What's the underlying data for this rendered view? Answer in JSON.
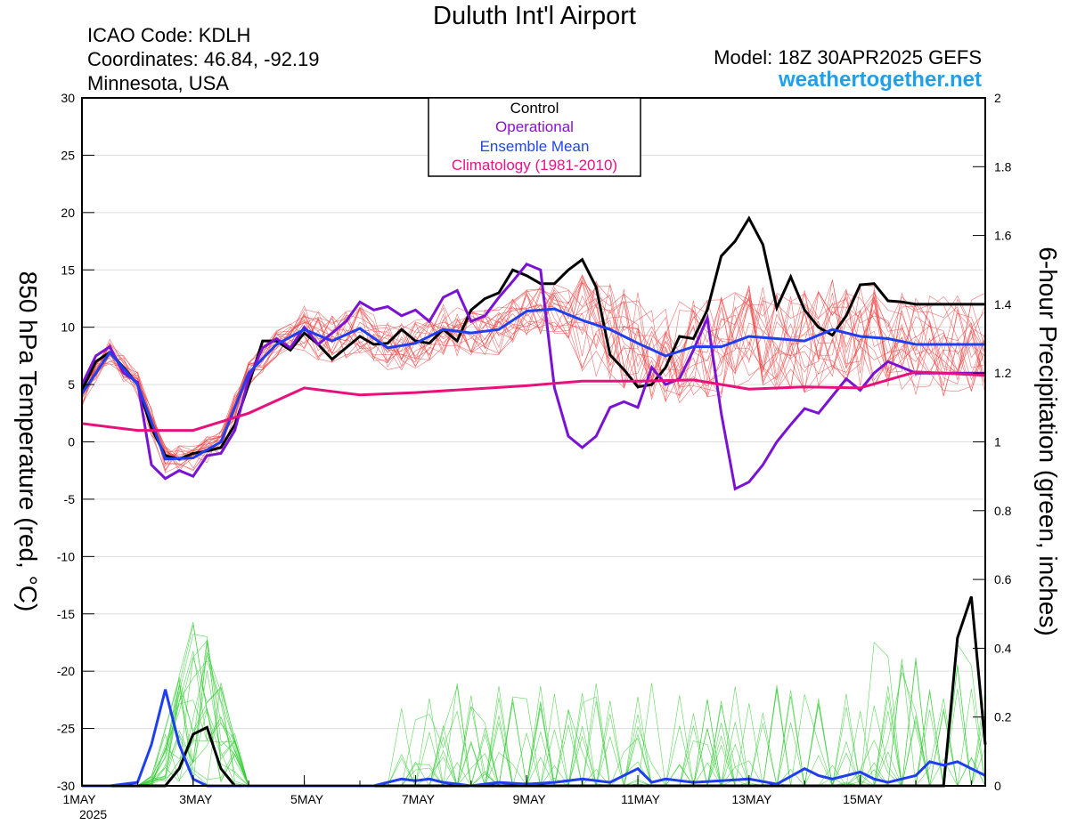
{
  "header": {
    "title": "Duluth Int'l Airport",
    "icao": "ICAO Code: KDLH",
    "coordinates": "Coordinates: 46.84, -92.19",
    "state": "Minnesota, USA",
    "model": "Model: 18Z 30APR2025 GEFS",
    "site": "weathertogether.net"
  },
  "chart_data": {
    "type": "line",
    "title": "Duluth Int'l Airport",
    "xlabel": "",
    "ylabel_left": "850 hPa Temperature (red, °C)",
    "ylabel_right": "6-hour Precipitation (green, inches)",
    "x_unit": "days since 1MAY 00Z",
    "xlim": [
      0,
      16.25
    ],
    "ylim_left": [
      -30,
      30
    ],
    "ylim_right": [
      0,
      2
    ],
    "x_ticks": [
      {
        "x": 0,
        "label": "1MAY"
      },
      {
        "x": 2,
        "label": "3MAY"
      },
      {
        "x": 4,
        "label": "5MAY"
      },
      {
        "x": 6,
        "label": "7MAY"
      },
      {
        "x": 8,
        "label": "9MAY"
      },
      {
        "x": 10,
        "label": "11MAY"
      },
      {
        "x": 12,
        "label": "13MAY"
      },
      {
        "x": 14,
        "label": "15MAY"
      }
    ],
    "x_year_label": "2025",
    "y_ticks_left": [
      30,
      25,
      20,
      15,
      10,
      5,
      0,
      -5,
      -10,
      -15,
      -20,
      -25,
      -30
    ],
    "y_ticks_right": [
      "2",
      "1.8",
      "1.6",
      "1.4",
      "1.2",
      "1",
      "0.8",
      "0.6",
      "0.4",
      "0.2",
      "0"
    ],
    "legend": {
      "position": "top-center",
      "entries": [
        {
          "label": "Control",
          "color": "#000000"
        },
        {
          "label": "Operational",
          "color": "#8a10d8"
        },
        {
          "label": "Ensemble Mean",
          "color": "#2244ee"
        },
        {
          "label": "Climatology (1981-2010)",
          "color": "#ee1188"
        }
      ]
    },
    "colors": {
      "control": "#000000",
      "operational": "#7a12d4",
      "ensemble_mean": "#1f3ef0",
      "climatology": "#e8107a",
      "members_temp": "#ee4040",
      "members_precip": "#33cc33"
    },
    "temperature_series": [
      {
        "name": "Control",
        "x": [
          0,
          0.25,
          0.5,
          0.75,
          1,
          1.25,
          1.5,
          1.75,
          2,
          2.25,
          2.5,
          2.75,
          3,
          3.25,
          3.5,
          3.75,
          4,
          4.25,
          4.5,
          4.75,
          5,
          5.25,
          5.5,
          5.75,
          6,
          6.25,
          6.5,
          6.75,
          7,
          7.25,
          7.5,
          7.75,
          8,
          8.25,
          8.5,
          8.75,
          9,
          9.25,
          9.5,
          9.75,
          10,
          10.25,
          10.5,
          10.75,
          11,
          11.25,
          11.5,
          11.75,
          12,
          12.25,
          12.5,
          12.75,
          13,
          13.25,
          13.5,
          13.75,
          14,
          14.25,
          14.5,
          14.75,
          15,
          15.25,
          15.5,
          15.75,
          16,
          16.25
        ],
        "y": [
          4.5,
          7,
          7.8,
          6.5,
          5,
          1.2,
          -1.2,
          -1.5,
          -1,
          -0.8,
          -0.5,
          1.5,
          5,
          8.8,
          8.8,
          8,
          9.5,
          8.5,
          7.2,
          8.2,
          9.2,
          8.5,
          8.6,
          9.8,
          8.8,
          8.6,
          9.8,
          8.8,
          11.5,
          12.5,
          13,
          15,
          14.5,
          13.8,
          13.8,
          15,
          15.9,
          13.5,
          7.6,
          6.3,
          4.8,
          5,
          6.5,
          9.2,
          9,
          11.5,
          16.2,
          17.5,
          19.5,
          17.2,
          11.7,
          14.4,
          11.5,
          10,
          9.3,
          11,
          13.7,
          13.8,
          12.3,
          12.2,
          12,
          12,
          12,
          12,
          12,
          12
        ]
      },
      {
        "name": "Operational",
        "x": [
          0,
          0.25,
          0.5,
          0.75,
          1,
          1.25,
          1.5,
          1.75,
          2,
          2.25,
          2.5,
          2.75,
          3,
          3.25,
          3.5,
          3.75,
          4,
          4.25,
          4.5,
          4.75,
          5,
          5.25,
          5.5,
          5.75,
          6,
          6.25,
          6.5,
          6.75,
          7,
          7.25,
          7.5,
          7.75,
          8,
          8.25,
          8.5,
          8.75,
          9,
          9.25,
          9.5,
          9.75,
          10,
          10.25,
          10.5,
          10.75,
          11,
          11.25,
          11.5,
          11.75,
          12,
          12.25,
          12.5,
          12.75,
          13,
          13.25,
          13.5,
          13.75,
          14,
          14.25,
          14.5,
          14.75,
          15,
          15.25,
          15.5,
          15.75,
          16,
          16.25
        ],
        "y": [
          5,
          7.5,
          8.3,
          6,
          5.2,
          -2,
          -3.2,
          -2.5,
          -3,
          -1.2,
          -1,
          1,
          5.5,
          8.2,
          9,
          8.2,
          10,
          8.5,
          9.5,
          10.5,
          12.2,
          11.5,
          11.8,
          11,
          11.5,
          10.5,
          12.6,
          13.2,
          10.5,
          11,
          12.6,
          14,
          15.5,
          15,
          4.7,
          0.5,
          -0.5,
          0.5,
          3,
          3.5,
          3,
          6.5,
          5,
          5.5,
          8,
          10.8,
          2.5,
          -4.1,
          -3.5,
          -2,
          0,
          1.5,
          2.9,
          2.5,
          4,
          5.5,
          4.5,
          6,
          7,
          6.5,
          6,
          6,
          6,
          6,
          6,
          6
        ]
      },
      {
        "name": "Ensemble Mean",
        "x": [
          0,
          0.5,
          1,
          1.5,
          2,
          2.5,
          3,
          3.5,
          4,
          4.5,
          5,
          5.5,
          6,
          6.5,
          7,
          7.5,
          8,
          8.5,
          9,
          9.5,
          10,
          10.5,
          11,
          11.5,
          12,
          12.5,
          13,
          13.5,
          14,
          14.5,
          15,
          15.5,
          16,
          16.25
        ],
        "y": [
          4.2,
          7.8,
          5,
          -1.5,
          -1.4,
          0,
          6,
          8.5,
          9.8,
          8.8,
          9.9,
          8.2,
          8.6,
          9.8,
          9.5,
          9.8,
          11.4,
          11.6,
          10.6,
          9.8,
          8.6,
          7.5,
          8.3,
          8.3,
          9.2,
          9,
          8.8,
          9.8,
          9.2,
          9,
          8.5,
          8.5,
          8.5,
          8.5
        ]
      },
      {
        "name": "Climatology (1981-2010)",
        "x": [
          0,
          1,
          2,
          3,
          4,
          5,
          6,
          7,
          8,
          9,
          10,
          11,
          12,
          13,
          14,
          15,
          15.5,
          16.25
        ],
        "y": [
          1.6,
          1,
          1,
          2.5,
          4.7,
          4.1,
          4.3,
          4.6,
          4.9,
          5.3,
          5.3,
          5.4,
          4.6,
          4.8,
          4.7,
          6.1,
          6.0,
          5.8
        ]
      }
    ],
    "precipitation_series": [
      {
        "name": "Control",
        "x": [
          0,
          1.5,
          1.75,
          2,
          2.25,
          2.5,
          2.75,
          3,
          14.5,
          15,
          15.5,
          15.75,
          16,
          16.25
        ],
        "y": [
          0,
          0,
          0.05,
          0.15,
          0.17,
          0.05,
          0,
          0,
          0,
          0,
          0,
          0.43,
          0.55,
          0.12
        ]
      },
      {
        "name": "Ensemble Mean",
        "x": [
          0,
          0.5,
          1,
          1.25,
          1.5,
          1.75,
          2,
          2.25,
          2.5,
          2.75,
          3,
          3.5,
          4,
          4.5,
          5,
          5.25,
          5.5,
          5.75,
          6,
          6.25,
          6.5,
          7,
          7.5,
          8,
          8.5,
          9,
          9.5,
          10,
          10.25,
          10.5,
          11,
          11.5,
          12,
          12.5,
          13,
          13.25,
          13.5,
          14,
          14.25,
          14.5,
          15,
          15.25,
          15.5,
          15.75,
          16,
          16.25
        ],
        "y": [
          0,
          0,
          0.01,
          0.12,
          0.28,
          0.12,
          0.02,
          0,
          0,
          0,
          0,
          0,
          0,
          0,
          0,
          0,
          0.01,
          0.02,
          0.015,
          0.02,
          0.01,
          0,
          0.01,
          0.005,
          0.01,
          0.02,
          0.01,
          0.05,
          0.01,
          0.02,
          0.01,
          0.015,
          0.02,
          0.005,
          0.05,
          0.03,
          0.02,
          0.04,
          0.02,
          0.01,
          0.03,
          0.07,
          0.06,
          0.07,
          0.05,
          0.03
        ]
      }
    ]
  }
}
